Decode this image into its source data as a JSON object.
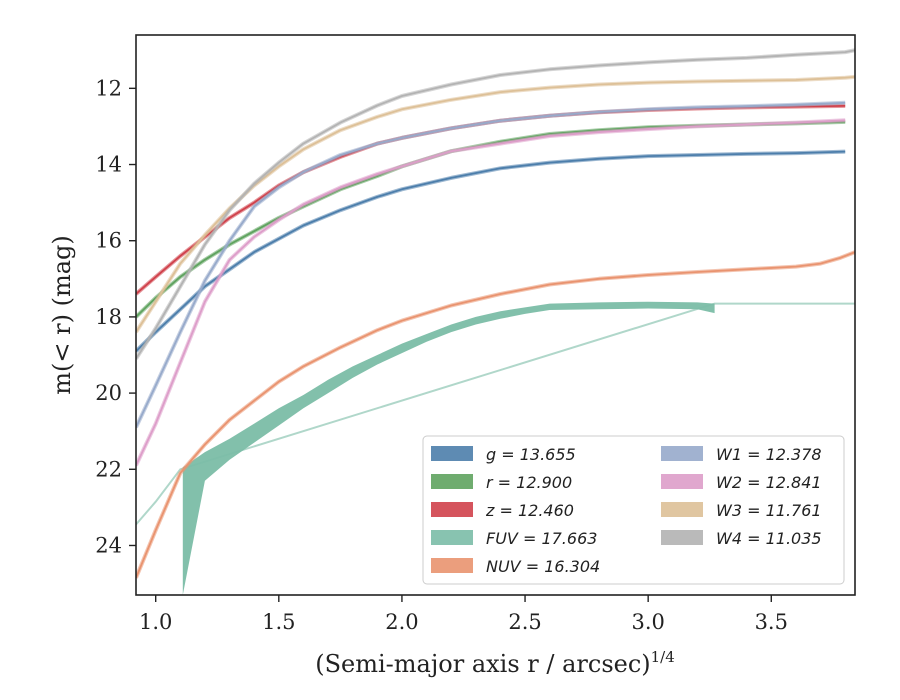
{
  "chart_data": {
    "type": "line",
    "title": "",
    "xlabel": "(Semi-major axis r / arcsec)",
    "xlabel_exponent": "1/4",
    "ylabel": "m(< r) (mag)",
    "xlim": [
      0.92,
      3.84
    ],
    "ylim": [
      25.3,
      10.6
    ],
    "y_inverted": true,
    "grid": false,
    "legend_position": "lower-right",
    "x_ticks": [
      "1.0",
      "1.5",
      "2.0",
      "2.5",
      "3.0",
      "3.5"
    ],
    "y_ticks": [
      "12",
      "14",
      "16",
      "18",
      "20",
      "22",
      "24"
    ],
    "series": [
      {
        "name": "g = 13.655",
        "color": "#4c7eab",
        "points": [
          [
            0.92,
            18.9
          ],
          [
            1.0,
            18.4
          ],
          [
            1.1,
            17.8
          ],
          [
            1.2,
            17.2
          ],
          [
            1.3,
            16.75
          ],
          [
            1.4,
            16.3
          ],
          [
            1.5,
            15.95
          ],
          [
            1.6,
            15.6
          ],
          [
            1.75,
            15.2
          ],
          [
            1.9,
            14.85
          ],
          [
            2.0,
            14.65
          ],
          [
            2.2,
            14.35
          ],
          [
            2.4,
            14.1
          ],
          [
            2.6,
            13.95
          ],
          [
            2.8,
            13.85
          ],
          [
            3.0,
            13.78
          ],
          [
            3.2,
            13.75
          ],
          [
            3.4,
            13.72
          ],
          [
            3.6,
            13.7
          ],
          [
            3.8,
            13.66
          ]
        ]
      },
      {
        "name": "r = 12.900",
        "color": "#5fa35f",
        "points": [
          [
            0.92,
            18.0
          ],
          [
            1.0,
            17.5
          ],
          [
            1.1,
            16.95
          ],
          [
            1.2,
            16.5
          ],
          [
            1.3,
            16.1
          ],
          [
            1.4,
            15.75
          ],
          [
            1.5,
            15.4
          ],
          [
            1.6,
            15.1
          ],
          [
            1.75,
            14.65
          ],
          [
            1.9,
            14.3
          ],
          [
            2.0,
            14.05
          ],
          [
            2.2,
            13.65
          ],
          [
            2.4,
            13.4
          ],
          [
            2.6,
            13.2
          ],
          [
            2.8,
            13.1
          ],
          [
            3.0,
            13.02
          ],
          [
            3.2,
            12.98
          ],
          [
            3.4,
            12.95
          ],
          [
            3.6,
            12.92
          ],
          [
            3.8,
            12.88
          ]
        ]
      },
      {
        "name": "z = 12.460",
        "color": "#d0414b",
        "points": [
          [
            0.92,
            17.4
          ],
          [
            1.0,
            16.95
          ],
          [
            1.1,
            16.4
          ],
          [
            1.2,
            15.9
          ],
          [
            1.3,
            15.4
          ],
          [
            1.4,
            15.0
          ],
          [
            1.5,
            14.55
          ],
          [
            1.6,
            14.2
          ],
          [
            1.75,
            13.8
          ],
          [
            1.9,
            13.45
          ],
          [
            2.0,
            13.3
          ],
          [
            2.2,
            13.05
          ],
          [
            2.4,
            12.85
          ],
          [
            2.6,
            12.72
          ],
          [
            2.8,
            12.63
          ],
          [
            3.0,
            12.57
          ],
          [
            3.2,
            12.53
          ],
          [
            3.4,
            12.5
          ],
          [
            3.6,
            12.48
          ],
          [
            3.8,
            12.46
          ]
        ]
      },
      {
        "name": "FUV = 17.663",
        "color": "#7bbda7",
        "band": true,
        "upper": [
          [
            1.11,
            21.95
          ],
          [
            1.2,
            21.55
          ],
          [
            1.3,
            21.2
          ],
          [
            1.4,
            20.8
          ],
          [
            1.5,
            20.4
          ],
          [
            1.6,
            20.05
          ],
          [
            1.7,
            19.65
          ],
          [
            1.8,
            19.3
          ],
          [
            1.9,
            19.0
          ],
          [
            2.0,
            18.7
          ],
          [
            2.1,
            18.45
          ],
          [
            2.2,
            18.2
          ],
          [
            2.3,
            18.0
          ],
          [
            2.4,
            17.85
          ],
          [
            2.5,
            17.75
          ],
          [
            2.6,
            17.65
          ],
          [
            2.8,
            17.62
          ],
          [
            3.0,
            17.6
          ],
          [
            3.2,
            17.62
          ],
          [
            3.27,
            17.65
          ]
        ],
        "lower": [
          [
            1.11,
            25.3
          ],
          [
            1.2,
            22.3
          ],
          [
            1.3,
            21.75
          ],
          [
            1.4,
            21.3
          ],
          [
            1.5,
            20.85
          ],
          [
            1.6,
            20.4
          ],
          [
            1.7,
            20.0
          ],
          [
            1.8,
            19.6
          ],
          [
            1.9,
            19.25
          ],
          [
            2.0,
            18.95
          ],
          [
            2.1,
            18.65
          ],
          [
            2.2,
            18.4
          ],
          [
            2.3,
            18.2
          ],
          [
            2.4,
            18.05
          ],
          [
            2.5,
            17.92
          ],
          [
            2.6,
            17.82
          ],
          [
            2.8,
            17.8
          ],
          [
            3.0,
            17.78
          ],
          [
            3.2,
            17.8
          ],
          [
            3.27,
            17.9
          ]
        ],
        "extension": [
          [
            0.92,
            23.45
          ],
          [
            1.0,
            22.85
          ],
          [
            1.1,
            22.0
          ],
          [
            3.27,
            17.65
          ],
          [
            3.84,
            17.65
          ]
        ]
      },
      {
        "name": "NUV = 16.304",
        "color": "#e9936f",
        "points": [
          [
            0.92,
            24.85
          ],
          [
            1.0,
            23.6
          ],
          [
            1.1,
            22.1
          ],
          [
            1.2,
            21.35
          ],
          [
            1.3,
            20.7
          ],
          [
            1.4,
            20.2
          ],
          [
            1.5,
            19.7
          ],
          [
            1.6,
            19.3
          ],
          [
            1.75,
            18.8
          ],
          [
            1.9,
            18.35
          ],
          [
            2.0,
            18.1
          ],
          [
            2.2,
            17.7
          ],
          [
            2.4,
            17.4
          ],
          [
            2.6,
            17.15
          ],
          [
            2.8,
            17.0
          ],
          [
            3.0,
            16.9
          ],
          [
            3.2,
            16.82
          ],
          [
            3.4,
            16.75
          ],
          [
            3.6,
            16.68
          ],
          [
            3.7,
            16.6
          ],
          [
            3.78,
            16.45
          ],
          [
            3.84,
            16.3
          ]
        ]
      },
      {
        "name": "W1 = 12.378",
        "color": "#97aacb",
        "points": [
          [
            0.92,
            20.9
          ],
          [
            1.0,
            19.8
          ],
          [
            1.1,
            18.4
          ],
          [
            1.2,
            17.05
          ],
          [
            1.3,
            16.0
          ],
          [
            1.4,
            15.1
          ],
          [
            1.5,
            14.6
          ],
          [
            1.6,
            14.2
          ],
          [
            1.75,
            13.75
          ],
          [
            1.9,
            13.45
          ],
          [
            2.0,
            13.3
          ],
          [
            2.2,
            13.05
          ],
          [
            2.4,
            12.85
          ],
          [
            2.6,
            12.72
          ],
          [
            2.8,
            12.62
          ],
          [
            3.0,
            12.55
          ],
          [
            3.2,
            12.5
          ],
          [
            3.4,
            12.47
          ],
          [
            3.6,
            12.43
          ],
          [
            3.8,
            12.38
          ]
        ]
      },
      {
        "name": "W2 = 12.841",
        "color": "#dd9dc9",
        "points": [
          [
            0.92,
            21.9
          ],
          [
            1.0,
            20.8
          ],
          [
            1.1,
            19.2
          ],
          [
            1.2,
            17.6
          ],
          [
            1.3,
            16.5
          ],
          [
            1.4,
            15.9
          ],
          [
            1.5,
            15.45
          ],
          [
            1.6,
            15.05
          ],
          [
            1.75,
            14.6
          ],
          [
            1.9,
            14.25
          ],
          [
            2.0,
            14.05
          ],
          [
            2.2,
            13.65
          ],
          [
            2.4,
            13.45
          ],
          [
            2.6,
            13.25
          ],
          [
            2.8,
            13.15
          ],
          [
            3.0,
            13.07
          ],
          [
            3.2,
            13.0
          ],
          [
            3.4,
            12.95
          ],
          [
            3.6,
            12.9
          ],
          [
            3.8,
            12.84
          ]
        ]
      },
      {
        "name": "W3 = 11.761",
        "color": "#ddc097",
        "points": [
          [
            0.92,
            18.4
          ],
          [
            1.0,
            17.6
          ],
          [
            1.1,
            16.6
          ],
          [
            1.2,
            15.85
          ],
          [
            1.3,
            15.15
          ],
          [
            1.4,
            14.55
          ],
          [
            1.5,
            14.05
          ],
          [
            1.6,
            13.6
          ],
          [
            1.75,
            13.1
          ],
          [
            1.9,
            12.75
          ],
          [
            2.0,
            12.55
          ],
          [
            2.2,
            12.3
          ],
          [
            2.4,
            12.1
          ],
          [
            2.6,
            11.98
          ],
          [
            2.8,
            11.9
          ],
          [
            3.0,
            11.85
          ],
          [
            3.2,
            11.82
          ],
          [
            3.4,
            11.8
          ],
          [
            3.6,
            11.78
          ],
          [
            3.8,
            11.72
          ],
          [
            3.84,
            11.7
          ]
        ]
      },
      {
        "name": "W4 = 11.035",
        "color": "#b3b3b3",
        "points": [
          [
            0.92,
            19.1
          ],
          [
            1.0,
            18.3
          ],
          [
            1.1,
            17.2
          ],
          [
            1.2,
            16.1
          ],
          [
            1.3,
            15.2
          ],
          [
            1.4,
            14.5
          ],
          [
            1.5,
            13.95
          ],
          [
            1.6,
            13.45
          ],
          [
            1.75,
            12.9
          ],
          [
            1.9,
            12.45
          ],
          [
            2.0,
            12.2
          ],
          [
            2.2,
            11.9
          ],
          [
            2.4,
            11.65
          ],
          [
            2.6,
            11.5
          ],
          [
            2.8,
            11.4
          ],
          [
            3.0,
            11.32
          ],
          [
            3.2,
            11.25
          ],
          [
            3.4,
            11.2
          ],
          [
            3.6,
            11.12
          ],
          [
            3.8,
            11.05
          ],
          [
            3.84,
            11.0
          ]
        ]
      }
    ]
  }
}
